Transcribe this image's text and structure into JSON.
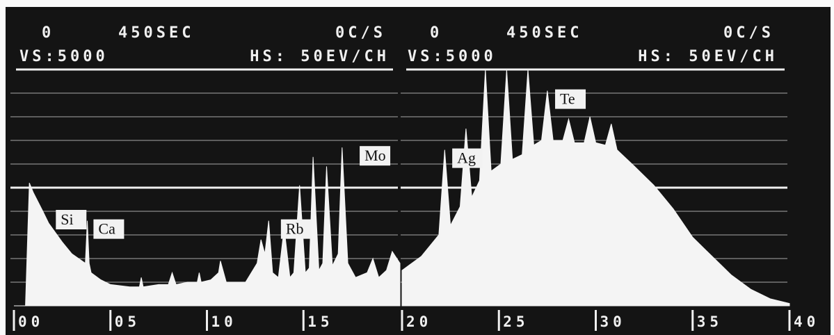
{
  "chart_data": [
    {
      "type": "area",
      "header": [
        "0",
        "450SEC",
        "0C/S"
      ],
      "subheader": [
        "VS:5000",
        "HS: 50EV/CH"
      ],
      "x": [
        0.0,
        0.6,
        0.8,
        1.0,
        1.5,
        1.8,
        2.5,
        3.0,
        3.7,
        3.8,
        3.9,
        4.0,
        4.5,
        5.0,
        6.0,
        6.5,
        6.6,
        6.7,
        7.5,
        8.0,
        8.2,
        8.4,
        9.0,
        9.5,
        9.6,
        9.7,
        10.2,
        10.6,
        10.7,
        11.0,
        12.0,
        12.6,
        12.8,
        13.0,
        13.2,
        13.4,
        13.7,
        14.0,
        14.3,
        14.5,
        14.8,
        15.1,
        15.3,
        15.5,
        15.8,
        16.0,
        16.2,
        16.5,
        16.8,
        17.0,
        17.3,
        17.7,
        18.3,
        18.6,
        18.9,
        19.3,
        19.6,
        20.0
      ],
      "values": [
        0,
        0,
        52,
        48,
        40,
        35,
        27,
        22,
        18,
        36,
        18,
        14,
        11,
        9,
        8,
        8,
        12,
        8,
        9,
        9,
        14,
        9,
        10,
        10,
        14,
        10,
        11,
        14,
        19,
        10,
        10,
        18,
        28,
        22,
        36,
        14,
        12,
        33,
        12,
        14,
        51,
        14,
        16,
        63,
        15,
        18,
        59,
        17,
        22,
        67,
        18,
        12,
        14,
        20,
        12,
        15,
        23,
        18
      ],
      "color": "#f4f4f4",
      "xlim": [
        0,
        20
      ],
      "xticks": [
        {
          "value": 0,
          "label": "00"
        },
        {
          "value": 5,
          "label": "05"
        },
        10,
        15
      ],
      "ylim": [
        0,
        100
      ],
      "yticks": [
        0,
        10,
        20,
        30,
        40,
        50,
        60,
        70,
        80,
        90,
        100
      ],
      "grid": true,
      "annotations": [
        {
          "text": "Si",
          "x": 1.74
        },
        {
          "text": "Ca",
          "x": 3.69
        },
        {
          "text": "Rb",
          "x": 13.4
        },
        {
          "text": "Mo",
          "x": 17.48
        }
      ]
    },
    {
      "type": "area",
      "header": [
        "0",
        "450SEC",
        "0C/S"
      ],
      "subheader": [
        "VS:5000",
        "HS: 50EV/CH"
      ],
      "x": [
        20,
        21,
        21.9,
        22.2,
        22.5,
        23.0,
        23.3,
        23.6,
        24.0,
        24.3,
        24.6,
        25.1,
        25.4,
        25.7,
        26.2,
        26.5,
        26.8,
        27.2,
        27.5,
        27.8,
        28.3,
        28.6,
        28.9,
        29.4,
        29.7,
        30.0,
        30.5,
        30.8,
        31.1,
        32,
        33,
        34,
        35,
        36,
        37,
        38,
        39,
        40
      ],
      "values": [
        15,
        21,
        30,
        66,
        34,
        42,
        75,
        46,
        53,
        100,
        57,
        60,
        100,
        62,
        64,
        100,
        68,
        70,
        91,
        70,
        70,
        79,
        69,
        69,
        80,
        69,
        68,
        77,
        66,
        59,
        51,
        41,
        29,
        21,
        13,
        7,
        3,
        1
      ],
      "color": "#f4f4f4",
      "xlim": [
        20,
        40
      ],
      "xticks": [
        20,
        25,
        30,
        35,
        40
      ],
      "ylim": [
        0,
        100
      ],
      "yticks": [
        0,
        10,
        20,
        30,
        40,
        50,
        60,
        70,
        80,
        90,
        100
      ],
      "grid": true,
      "annotations": [
        {
          "text": "Ag",
          "x": 22.16
        },
        {
          "text": "Te",
          "x": 27.47
        }
      ]
    }
  ]
}
